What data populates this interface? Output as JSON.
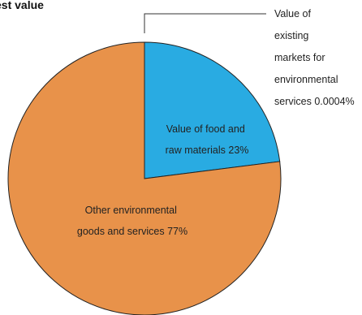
{
  "chart_data": {
    "type": "pie",
    "title": "est value",
    "slices": [
      {
        "label_lines": [
          "Value of food and",
          "raw materials 23%"
        ],
        "value": 23,
        "color": "#29abe2"
      },
      {
        "label_lines": [
          "Other environmental",
          "goods and services 77%"
        ],
        "value": 77,
        "color": "#e8924a"
      }
    ],
    "callout": {
      "label_lines": [
        "Value of",
        "existing",
        "markets for",
        "environmental",
        "services 0.0004%"
      ],
      "value": 0.0004
    },
    "slice_stroke": "#222222"
  }
}
